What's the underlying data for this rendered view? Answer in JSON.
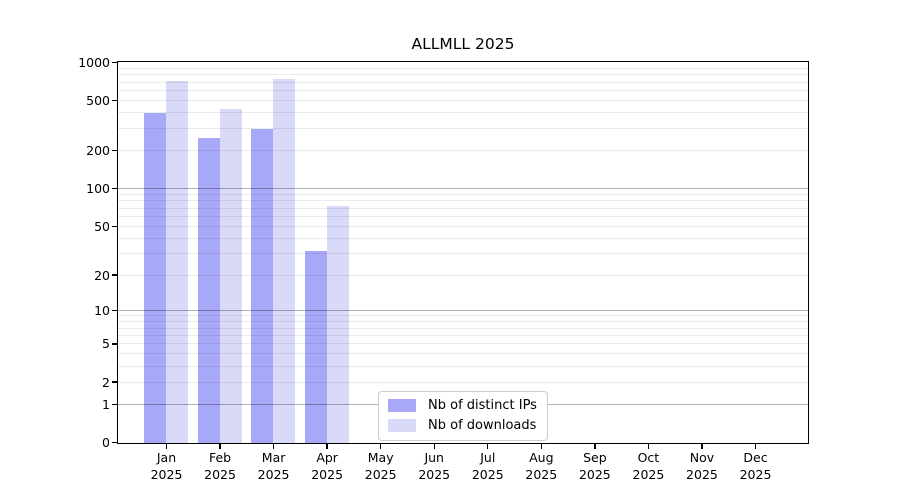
{
  "colors": {
    "background": "#ffffff",
    "axis": "#000000",
    "text": "#000000",
    "major_grid": "rgba(0,0,0,0.30)",
    "minor_grid": "rgba(0,0,0,0.08)",
    "legend_border": "#cccccc",
    "series_ips": "#a8a8f8",
    "series_downloads": "#d9d9f8"
  },
  "chart_data": {
    "type": "bar",
    "title": "ALLMLL 2025",
    "x_categories": [
      "Jan",
      "Feb",
      "Mar",
      "Apr",
      "May",
      "Jun",
      "Jul",
      "Aug",
      "Sep",
      "Oct",
      "Nov",
      "Dec"
    ],
    "x_year": "2025",
    "series": [
      {
        "name": "Nb of distinct IPs",
        "color": "#a8a8f8",
        "values": [
          400,
          255,
          300,
          32,
          0,
          0,
          0,
          0,
          0,
          0,
          0,
          0
        ]
      },
      {
        "name": "Nb of downloads",
        "color": "#d9d9f8",
        "values": [
          720,
          430,
          750,
          73,
          0,
          0,
          0,
          0,
          0,
          0,
          0,
          0
        ]
      }
    ],
    "y_axis": {
      "scale": "log1p",
      "min": 0,
      "max": 1000,
      "tick_values": [
        0,
        1,
        2,
        5,
        10,
        20,
        50,
        100,
        200,
        500,
        1000
      ],
      "major_grid_values": [
        1,
        10,
        100
      ],
      "minor_grid_values": [
        2,
        3,
        4,
        5,
        6,
        7,
        8,
        9,
        20,
        30,
        40,
        50,
        60,
        70,
        80,
        90,
        200,
        300,
        400,
        500,
        600,
        700,
        800,
        900
      ],
      "grid_above_bars": true
    },
    "legend_position": "bottom-center"
  }
}
